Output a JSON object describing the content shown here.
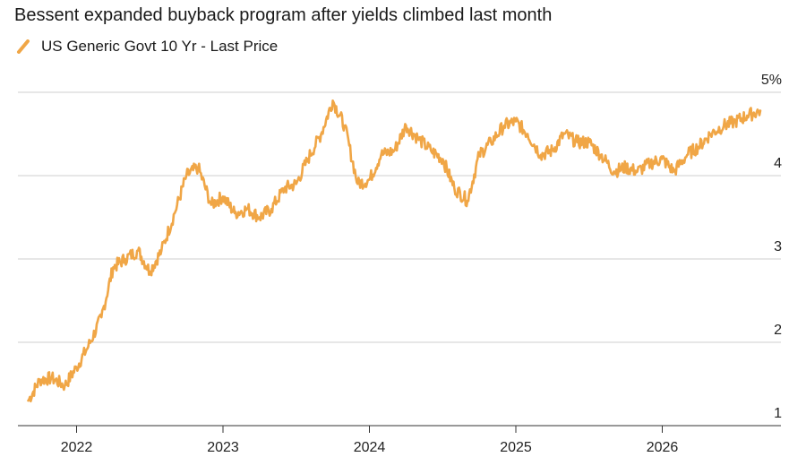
{
  "chart_data": {
    "type": "line",
    "title": "Bessent expanded buyback program after yields climbed last month",
    "ylim": [
      1,
      5
    ],
    "y_ticks": [
      "1",
      "2",
      "3",
      "4",
      "5%"
    ],
    "y_tick_values": [
      1,
      2,
      3,
      4,
      5
    ],
    "x_ticks": [
      "2022",
      "2023",
      "2024",
      "2025",
      "2026"
    ],
    "x_tick_values": [
      2022,
      2023,
      2024,
      2025,
      2026
    ],
    "xlim": [
      2021.67,
      2026.67
    ],
    "grid": true,
    "legend": "top-left",
    "series": [
      {
        "name": "US Generic Govt 10 Yr - Last Price",
        "color": "#f0a646",
        "x": [
          2021.67,
          2021.75,
          2021.83,
          2021.92,
          2022.0,
          2022.08,
          2022.17,
          2022.25,
          2022.33,
          2022.42,
          2022.5,
          2022.58,
          2022.67,
          2022.75,
          2022.83,
          2022.92,
          2023.0,
          2023.08,
          2023.17,
          2023.25,
          2023.33,
          2023.42,
          2023.5,
          2023.58,
          2023.67,
          2023.75,
          2023.83,
          2023.92,
          2024.0,
          2024.08,
          2024.17,
          2024.25,
          2024.33,
          2024.42,
          2024.5,
          2024.58,
          2024.67,
          2024.75,
          2024.83,
          2024.92,
          2025.0,
          2025.08,
          2025.17,
          2025.25,
          2025.33,
          2025.42,
          2025.5,
          2025.58,
          2025.67,
          2025.75,
          2025.83,
          2025.92,
          2026.0,
          2026.08,
          2026.17,
          2026.25,
          2026.33,
          2026.42,
          2026.5,
          2026.58,
          2026.67
        ],
        "values": [
          1.3,
          1.55,
          1.57,
          1.48,
          1.7,
          1.95,
          2.3,
          2.9,
          3.0,
          3.1,
          2.85,
          3.1,
          3.55,
          4.0,
          4.1,
          3.65,
          3.75,
          3.55,
          3.6,
          3.5,
          3.6,
          3.85,
          3.9,
          4.2,
          4.5,
          4.9,
          4.6,
          3.9,
          3.95,
          4.25,
          4.3,
          4.6,
          4.45,
          4.3,
          4.2,
          3.85,
          3.7,
          4.25,
          4.4,
          4.6,
          4.65,
          4.5,
          4.25,
          4.3,
          4.5,
          4.4,
          4.4,
          4.25,
          4.05,
          4.1,
          4.05,
          4.15,
          4.2,
          4.05,
          4.25,
          4.35,
          4.5,
          4.6,
          4.65,
          4.72,
          4.78
        ]
      }
    ]
  }
}
